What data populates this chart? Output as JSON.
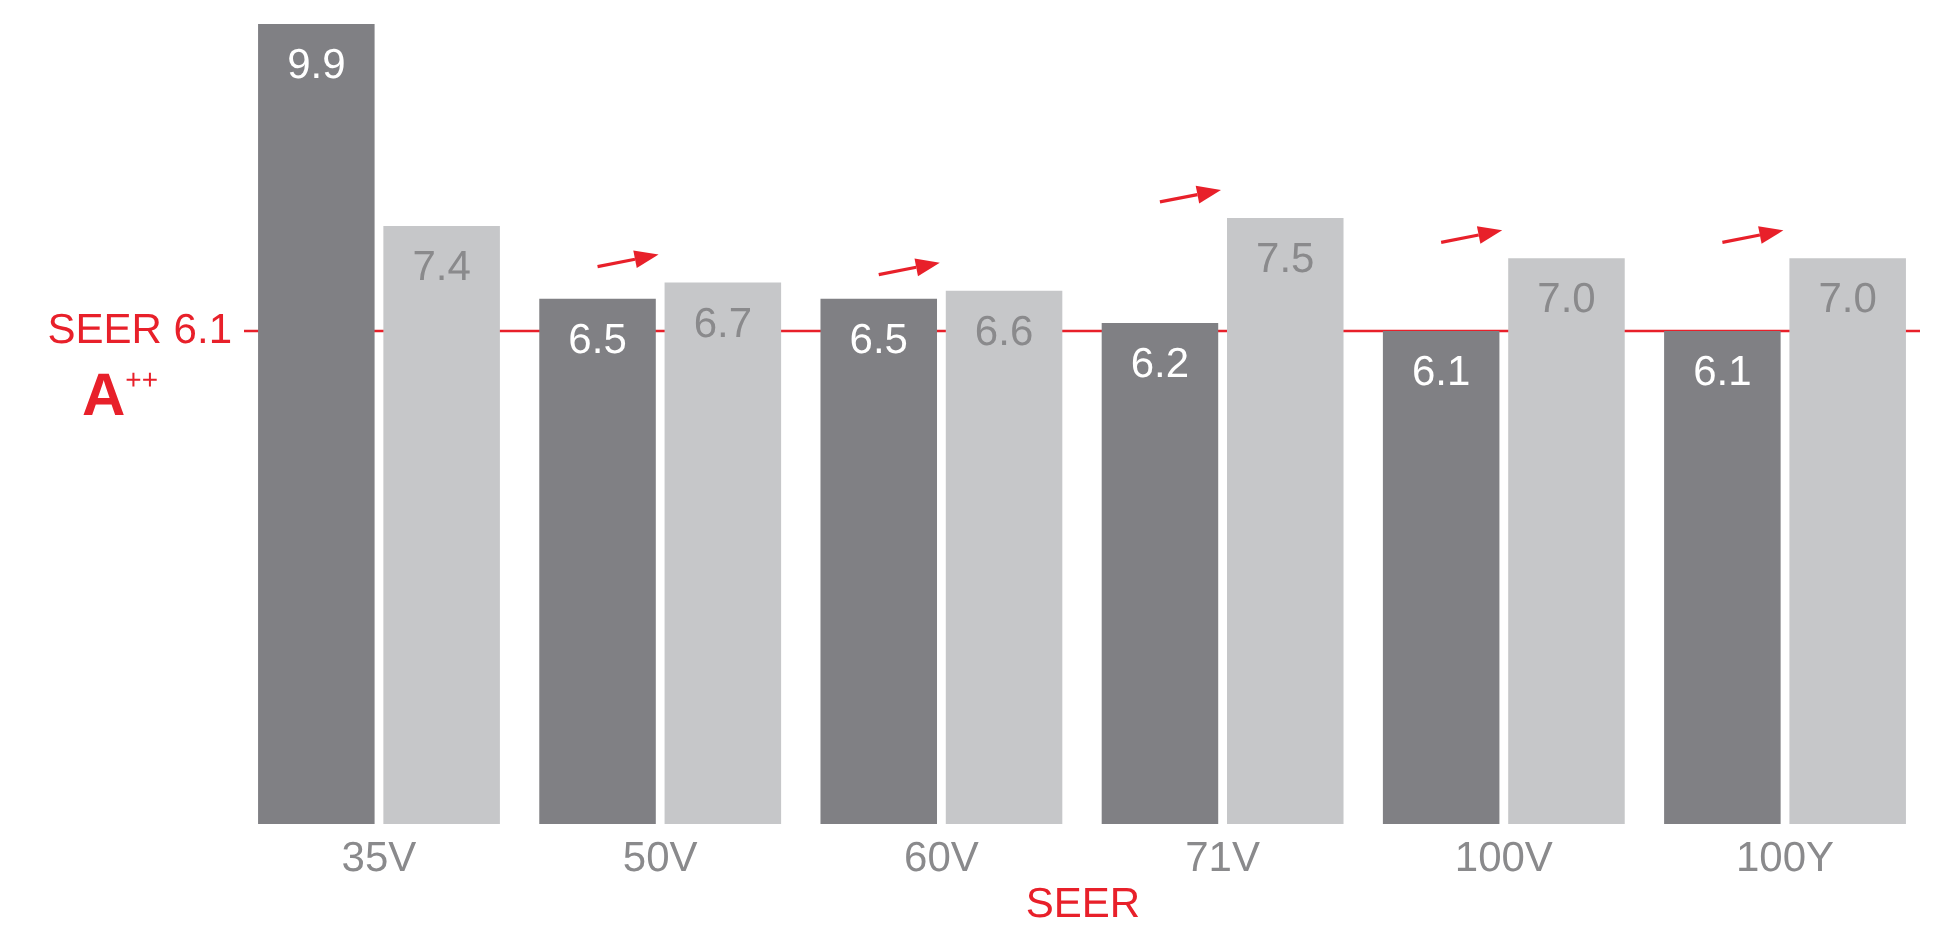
{
  "chart_data": {
    "type": "bar",
    "xlabel": "SEER",
    "categories": [
      "35V",
      "50V",
      "60V",
      "71V",
      "100V",
      "100Y"
    ],
    "series": [
      {
        "color": "#808084",
        "values": [
          9.9,
          6.5,
          6.5,
          6.2,
          6.1,
          6.1
        ],
        "value_labels": [
          "9.9",
          "6.5",
          "6.5",
          "6.2",
          "6.1",
          "6.1"
        ]
      },
      {
        "color": "#c6c7c9",
        "values": [
          7.4,
          6.7,
          6.6,
          7.5,
          7.0,
          7.0
        ],
        "value_labels": [
          "7.4",
          "6.7",
          "6.6",
          "7.5",
          "7.0",
          "7.0"
        ]
      }
    ],
    "ref_lines": [
      {
        "axis": "y",
        "value": 6.1,
        "label": "SEER 6.1",
        "color": "#e8202a"
      }
    ],
    "annotations": [
      "A$^{++}$"
    ]
  }
}
